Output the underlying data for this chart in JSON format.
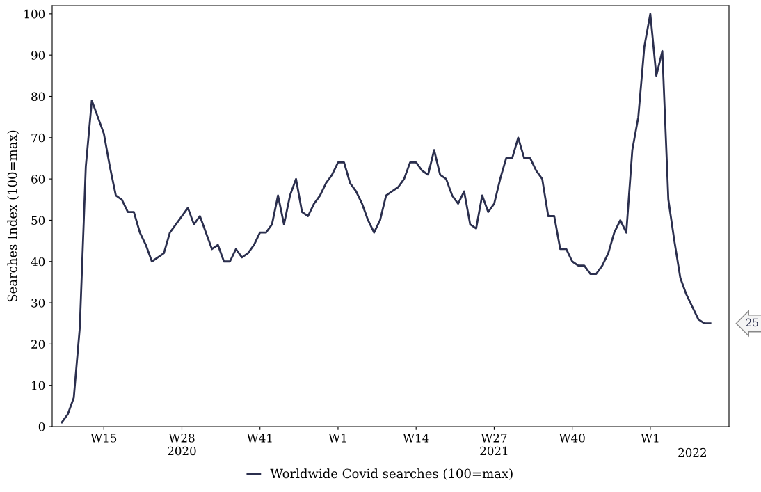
{
  "chart_data": {
    "type": "line",
    "ylabel": "Searches Index (100=max)",
    "categories": [
      null,
      null,
      null,
      null,
      null,
      null,
      null,
      "W15",
      null,
      null,
      null,
      null,
      null,
      null,
      null,
      null,
      null,
      null,
      null,
      null,
      "W28\n2020",
      null,
      null,
      null,
      null,
      null,
      null,
      null,
      null,
      null,
      null,
      null,
      null,
      "W41",
      null,
      null,
      null,
      null,
      null,
      null,
      null,
      null,
      null,
      null,
      null,
      null,
      "W1",
      null,
      null,
      null,
      null,
      null,
      null,
      null,
      null,
      null,
      null,
      null,
      null,
      "W14",
      null,
      null,
      null,
      null,
      null,
      null,
      null,
      null,
      null,
      null,
      null,
      null,
      "W27\n2021",
      null,
      null,
      null,
      null,
      null,
      null,
      null,
      null,
      null,
      null,
      null,
      null,
      "W40",
      null,
      null,
      null,
      null,
      null,
      null,
      null,
      null,
      null,
      null,
      null,
      null,
      "W1",
      null,
      null,
      null,
      null,
      null,
      null,
      "2022",
      null,
      null,
      null
    ],
    "series": [
      {
        "name": "Worldwide Covid searches (100=max)",
        "color": "#2b2f4e",
        "values": [
          1,
          3,
          7,
          24,
          63,
          79,
          75,
          71,
          63,
          56,
          55,
          52,
          52,
          47,
          44,
          40,
          41,
          42,
          47,
          49,
          51,
          53,
          49,
          51,
          47,
          43,
          44,
          40,
          40,
          43,
          41,
          42,
          44,
          47,
          47,
          49,
          56,
          49,
          56,
          60,
          52,
          51,
          54,
          56,
          59,
          61,
          64,
          64,
          59,
          57,
          54,
          50,
          47,
          50,
          56,
          57,
          58,
          60,
          64,
          64,
          62,
          61,
          67,
          61,
          60,
          56,
          54,
          57,
          49,
          48,
          56,
          52,
          54,
          60,
          65,
          65,
          70,
          65,
          65,
          62,
          60,
          51,
          51,
          43,
          43,
          40,
          39,
          39,
          37,
          37,
          39,
          42,
          47,
          50,
          47,
          67,
          75,
          92,
          100,
          85,
          91,
          55,
          45,
          36,
          32,
          29,
          26,
          25,
          25
        ]
      }
    ],
    "ylim": [
      0,
      102
    ],
    "yticks": [
      0,
      10,
      20,
      30,
      40,
      50,
      60,
      70,
      80,
      90,
      100
    ],
    "grid": false,
    "legend": "bottom",
    "marker": "none",
    "line_style": "solid",
    "annotations": [
      "25"
    ]
  }
}
